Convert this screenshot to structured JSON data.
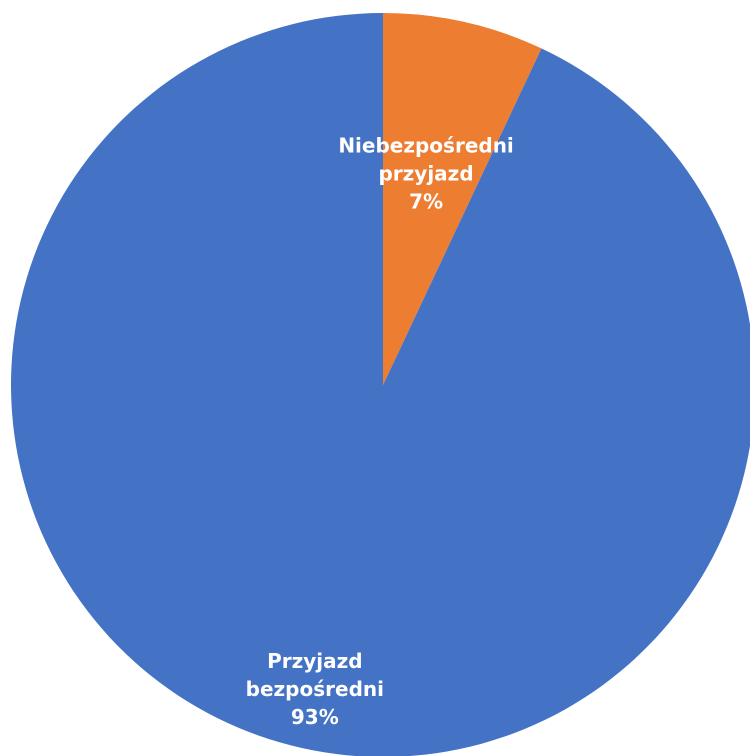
{
  "chart_data": {
    "type": "pie",
    "title": "",
    "start_angle_deg": 0,
    "direction": "counterclockwise",
    "slices": [
      {
        "label_lines": [
          "Przyjazd",
          "bezpośredni"
        ],
        "percent_label": "93%",
        "value": 93,
        "color": "#4472C4"
      },
      {
        "label_lines": [
          "Niebezpośredni",
          "przyjazd"
        ],
        "percent_label": "7%",
        "value": 7,
        "color": "#ED7D31"
      }
    ]
  }
}
